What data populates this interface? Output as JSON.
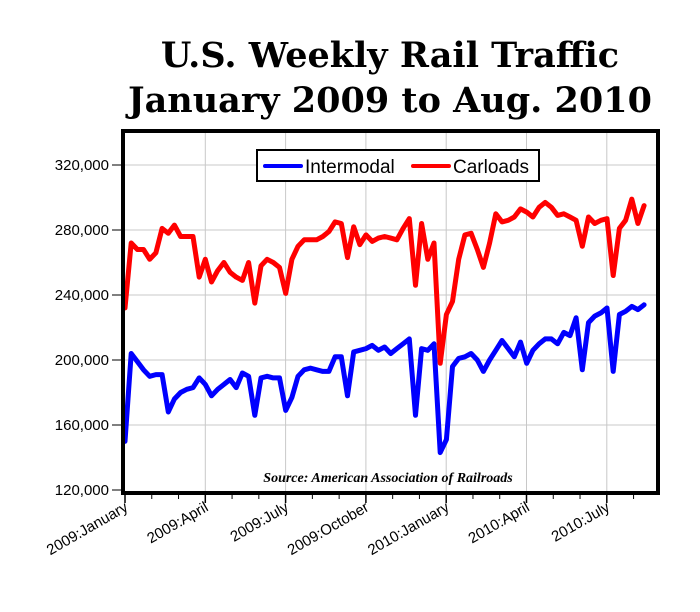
{
  "chart_data": {
    "type": "line",
    "title": [
      "U.S. Weekly Rail Traffic",
      "January 2009 to Aug. 2010"
    ],
    "xlabel": "",
    "ylabel": "",
    "ylim": [
      120000,
      320000
    ],
    "y_ticks": [
      120000,
      160000,
      200000,
      240000,
      280000,
      320000
    ],
    "y_tick_labels": [
      "120,000",
      "160,000",
      "200,000",
      "240,000",
      "280,000",
      "320,000"
    ],
    "x_tick_labels": [
      "2009:January",
      "2009:April",
      "2009:July",
      "2009:October",
      "2010:January",
      "2010:April",
      "2010:July"
    ],
    "grid": true,
    "legend": "top-center",
    "annotation": "Source: American Association of Railroads",
    "series": [
      {
        "name": "Intermodal",
        "color": "#0000ff",
        "values": [
          150000,
          204000,
          199000,
          194000,
          190000,
          191000,
          191000,
          168000,
          176000,
          180000,
          182000,
          183000,
          189000,
          185000,
          178000,
          182000,
          185000,
          188000,
          183000,
          192000,
          190000,
          166000,
          189000,
          190000,
          189000,
          189000,
          169000,
          177000,
          190000,
          194000,
          195000,
          194000,
          193000,
          193000,
          202000,
          202000,
          178000,
          205000,
          206000,
          207000,
          209000,
          206000,
          208000,
          204000,
          207000,
          210000,
          213000,
          166000,
          207000,
          206000,
          210000,
          143000,
          151000,
          196000,
          201000,
          202000,
          204000,
          200000,
          193000,
          200000,
          206000,
          212000,
          207000,
          202000,
          211000,
          198000,
          206000,
          210000,
          213000,
          213000,
          210000,
          217000,
          215000,
          226000,
          194000,
          223000,
          227000,
          229000,
          232000,
          193000,
          228000,
          230000,
          233000,
          231000,
          234000
        ]
      },
      {
        "name": "Carloads",
        "color": "#ff0000",
        "values": [
          232000,
          272000,
          268000,
          268000,
          262000,
          266000,
          281000,
          278000,
          283000,
          276000,
          276000,
          276000,
          251000,
          262000,
          248000,
          255000,
          260000,
          254000,
          251000,
          249000,
          260000,
          235000,
          258000,
          262000,
          260000,
          257000,
          241000,
          262000,
          270000,
          274000,
          274000,
          274000,
          276000,
          279000,
          285000,
          284000,
          263000,
          282000,
          271000,
          277000,
          273000,
          275000,
          276000,
          275000,
          274000,
          281000,
          287000,
          246000,
          284000,
          262000,
          272000,
          198000,
          228000,
          236000,
          262000,
          277000,
          278000,
          268000,
          257000,
          272000,
          290000,
          285000,
          286000,
          288000,
          293000,
          291000,
          288000,
          294000,
          297000,
          294000,
          289000,
          290000,
          288000,
          286000,
          270000,
          288000,
          284000,
          286000,
          287000,
          252000,
          281000,
          286000,
          299000,
          284000,
          295000
        ]
      }
    ]
  }
}
